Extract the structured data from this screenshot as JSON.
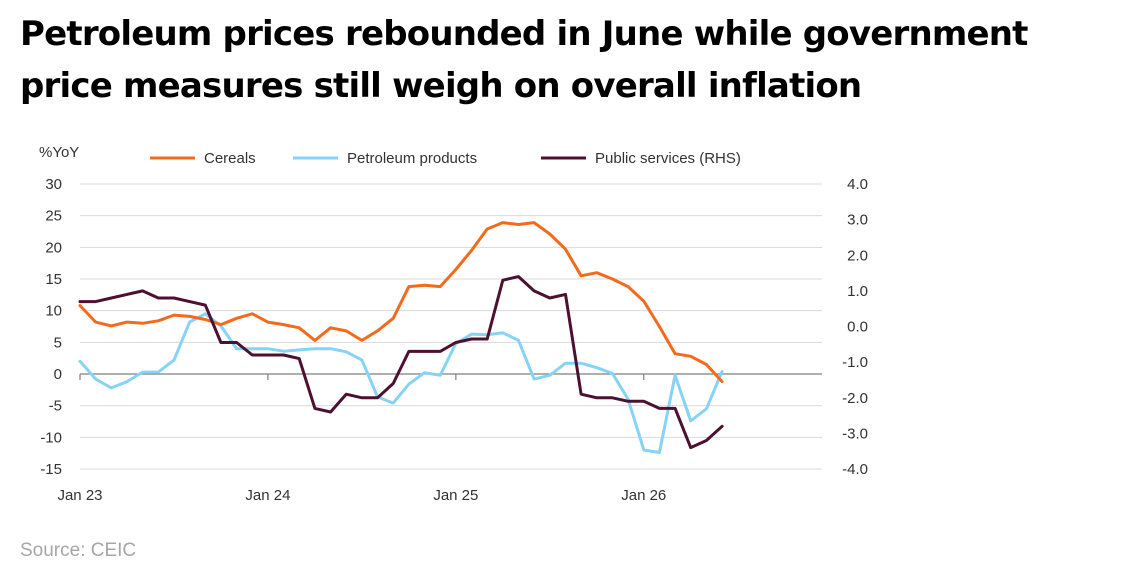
{
  "title": "Petroleum prices rebounded in June while government price measures still weigh on overall inflation",
  "source": "Source: CEIC",
  "chart_data": {
    "type": "line",
    "ylabel": "%YoY",
    "y_left": {
      "ylim": [
        -15,
        30
      ],
      "ticks": [
        "30",
        "25",
        "20",
        "15",
        "10",
        "5",
        "0",
        "-5",
        "-10",
        "-15"
      ],
      "tick_values": [
        30,
        25,
        20,
        15,
        10,
        5,
        0,
        -5,
        -10,
        -15
      ]
    },
    "y_right": {
      "ylim": [
        -4,
        4
      ],
      "ticks": [
        "4.0",
        "3.0",
        "2.0",
        "1.0",
        "0.0",
        "-1.0",
        "-2.0",
        "-3.0",
        "-4.0"
      ],
      "tick_values": [
        4,
        3,
        2,
        1,
        0,
        -1,
        -2,
        -3,
        -4
      ]
    },
    "x_ticks": [
      "Jan 23",
      "Jan 24",
      "Jan 25",
      "Jan 26"
    ],
    "x_tick_index": [
      0,
      12,
      24,
      36
    ],
    "legend_position": "top",
    "series": [
      {
        "name": "Cereals",
        "axis": "left",
        "color": "#f26b1d",
        "values": [
          10.8,
          8.2,
          7.6,
          8.2,
          8.0,
          8.4,
          9.3,
          9.1,
          8.6,
          7.8,
          8.8,
          9.5,
          8.2,
          7.8,
          7.3,
          5.3,
          7.3,
          6.8,
          5.3,
          6.8,
          8.8,
          13.8,
          14.0,
          13.8,
          16.5,
          19.5,
          22.9,
          23.9,
          23.6,
          23.9,
          22.1,
          19.7,
          15.5,
          16.0,
          15.0,
          13.8,
          11.5,
          7.5,
          3.2,
          2.8,
          1.5,
          -1.2
        ]
      },
      {
        "name": "Petroleum products",
        "axis": "left",
        "color": "#87d3f8",
        "values": [
          2.0,
          -0.8,
          -2.2,
          -1.2,
          0.3,
          0.3,
          2.2,
          8.2,
          9.5,
          7.6,
          4.0,
          4.0,
          4.0,
          3.6,
          3.8,
          4.0,
          4.0,
          3.5,
          2.2,
          -3.6,
          -4.6,
          -1.6,
          0.2,
          -0.2,
          4.8,
          6.3,
          6.2,
          6.5,
          5.3,
          -0.8,
          -0.2,
          1.7,
          1.7,
          1.0,
          0.1,
          -4.0,
          -12.0,
          -12.4,
          -0.2,
          -7.4,
          -5.5,
          0.4
        ]
      },
      {
        "name": "Public services (RHS)",
        "axis": "right",
        "color": "#4e1030",
        "values": [
          0.7,
          0.7,
          0.8,
          0.9,
          1.0,
          0.8,
          0.8,
          0.7,
          0.6,
          -0.45,
          -0.45,
          -0.8,
          -0.8,
          -0.8,
          -0.9,
          -2.3,
          -2.4,
          -1.9,
          -2.0,
          -2.0,
          -1.6,
          -0.7,
          -0.7,
          -0.7,
          -0.45,
          -0.35,
          -0.35,
          1.3,
          1.4,
          1.0,
          0.8,
          0.9,
          -1.9,
          -2.0,
          -2.0,
          -2.1,
          -2.1,
          -2.3,
          -2.3,
          -3.4,
          -3.2,
          -2.8
        ]
      }
    ]
  }
}
